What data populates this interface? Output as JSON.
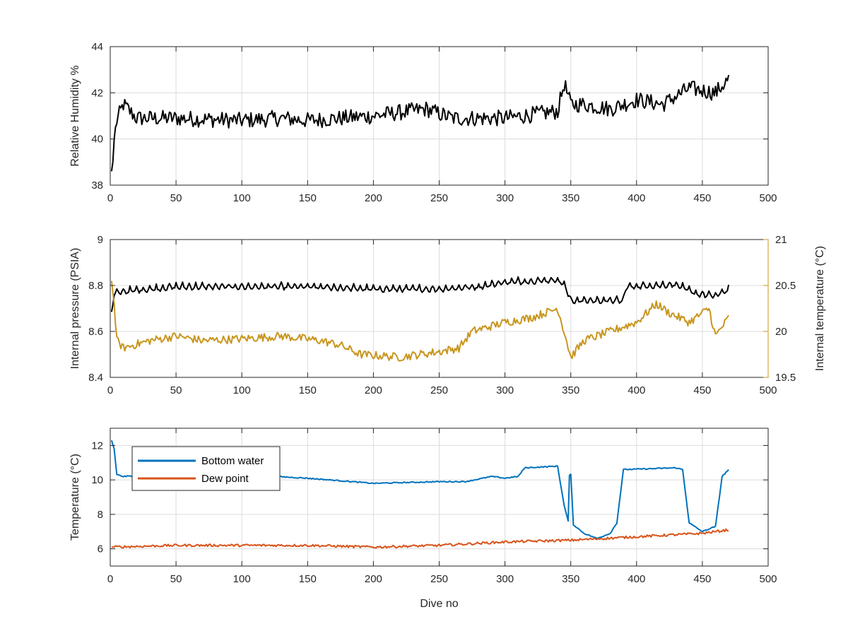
{
  "chart_data": [
    {
      "type": "line",
      "ylabel": "Relative Humidity %",
      "xlim": [
        0,
        500
      ],
      "ylim": [
        38,
        44
      ],
      "xticks": [
        0,
        50,
        100,
        150,
        200,
        250,
        300,
        350,
        400,
        450,
        500
      ],
      "yticks": [
        38,
        40,
        42,
        44
      ],
      "grid": true,
      "series": [
        {
          "color": "#000000",
          "noise": 0.35,
          "points": [
            [
              1,
              38.6
            ],
            [
              2,
              39.0
            ],
            [
              3,
              40.0
            ],
            [
              5,
              40.8
            ],
            [
              10,
              41.5
            ],
            [
              20,
              40.9
            ],
            [
              50,
              40.9
            ],
            [
              100,
              40.8
            ],
            [
              130,
              40.9
            ],
            [
              150,
              40.8
            ],
            [
              200,
              41.0
            ],
            [
              240,
              41.3
            ],
            [
              260,
              40.9
            ],
            [
              300,
              40.9
            ],
            [
              340,
              41.2
            ],
            [
              345,
              42.4
            ],
            [
              350,
              41.5
            ],
            [
              360,
              41.5
            ],
            [
              380,
              41.3
            ],
            [
              400,
              41.7
            ],
            [
              420,
              41.5
            ],
            [
              440,
              42.2
            ],
            [
              460,
              42.0
            ],
            [
              470,
              42.6
            ]
          ]
        }
      ]
    },
    {
      "type": "line",
      "ylabel": "Internal pressure (PSIA)",
      "y2label": "Internal temperature (°C)",
      "xlim": [
        0,
        500
      ],
      "ylim": [
        8.4,
        9.0
      ],
      "y2lim": [
        19.5,
        21.0
      ],
      "xticks": [
        0,
        50,
        100,
        150,
        200,
        250,
        300,
        350,
        400,
        450,
        500
      ],
      "yticks": [
        8.4,
        8.6,
        8.8,
        9.0
      ],
      "ytick_labels": [
        "8.4",
        "8.6",
        "8.8",
        "9"
      ],
      "y2ticks": [
        19.5,
        20.0,
        20.5,
        21.0
      ],
      "y2tick_labels": [
        "19.5",
        "20",
        "20.5",
        "21"
      ],
      "grid": true,
      "series": [
        {
          "axis": "left",
          "color": "#000000",
          "noise": 0.006,
          "sawtooth": 0.025,
          "points": [
            [
              1,
              8.7
            ],
            [
              3,
              8.78
            ],
            [
              10,
              8.79
            ],
            [
              50,
              8.81
            ],
            [
              100,
              8.81
            ],
            [
              150,
              8.81
            ],
            [
              200,
              8.8
            ],
            [
              250,
              8.8
            ],
            [
              280,
              8.81
            ],
            [
              300,
              8.83
            ],
            [
              340,
              8.84
            ],
            [
              345,
              8.82
            ],
            [
              350,
              8.75
            ],
            [
              390,
              8.75
            ],
            [
              392,
              8.81
            ],
            [
              430,
              8.82
            ],
            [
              445,
              8.78
            ],
            [
              460,
              8.77
            ],
            [
              470,
              8.8
            ]
          ]
        },
        {
          "axis": "right",
          "color": "#C8961E",
          "noise": 0.045,
          "points": [
            [
              1,
              20.55
            ],
            [
              3,
              20.3
            ],
            [
              5,
              19.9
            ],
            [
              10,
              19.82
            ],
            [
              30,
              19.9
            ],
            [
              50,
              19.95
            ],
            [
              70,
              19.9
            ],
            [
              100,
              19.92
            ],
            [
              130,
              19.95
            ],
            [
              160,
              19.9
            ],
            [
              175,
              19.85
            ],
            [
              190,
              19.75
            ],
            [
              220,
              19.72
            ],
            [
              250,
              19.78
            ],
            [
              265,
              19.82
            ],
            [
              275,
              20.0
            ],
            [
              300,
              20.1
            ],
            [
              320,
              20.15
            ],
            [
              340,
              20.25
            ],
            [
              345,
              20.0
            ],
            [
              350,
              19.72
            ],
            [
              360,
              19.9
            ],
            [
              380,
              20.0
            ],
            [
              400,
              20.1
            ],
            [
              415,
              20.3
            ],
            [
              425,
              20.2
            ],
            [
              440,
              20.1
            ],
            [
              455,
              20.25
            ],
            [
              460,
              19.95
            ],
            [
              470,
              20.15
            ]
          ]
        }
      ]
    },
    {
      "type": "line",
      "xlabel": "Dive no",
      "ylabel": "Temperature (°C)",
      "xlim": [
        0,
        500
      ],
      "ylim": [
        5,
        13
      ],
      "xticks": [
        0,
        50,
        100,
        150,
        200,
        250,
        300,
        350,
        400,
        450,
        500
      ],
      "yticks": [
        6,
        8,
        10,
        12
      ],
      "grid": true,
      "legend": "top-left",
      "series": [
        {
          "name": "Bottom water",
          "color": "#0072BD",
          "noise": 0.03,
          "points": [
            [
              1,
              12.3
            ],
            [
              3,
              11.8
            ],
            [
              5,
              10.3
            ],
            [
              10,
              10.2
            ],
            [
              50,
              10.4
            ],
            [
              100,
              10.3
            ],
            [
              150,
              10.1
            ],
            [
              200,
              9.8
            ],
            [
              250,
              9.9
            ],
            [
              270,
              9.9
            ],
            [
              290,
              10.2
            ],
            [
              300,
              10.1
            ],
            [
              310,
              10.2
            ],
            [
              315,
              10.7
            ],
            [
              340,
              10.8
            ],
            [
              345,
              8.5
            ],
            [
              348,
              7.6
            ],
            [
              349,
              10.3
            ],
            [
              350,
              10.3
            ],
            [
              352,
              7.4
            ],
            [
              360,
              6.9
            ],
            [
              370,
              6.6
            ],
            [
              380,
              6.9
            ],
            [
              385,
              7.5
            ],
            [
              390,
              10.6
            ],
            [
              430,
              10.7
            ],
            [
              435,
              10.6
            ],
            [
              440,
              7.5
            ],
            [
              450,
              7.0
            ],
            [
              460,
              7.3
            ],
            [
              465,
              10.2
            ],
            [
              470,
              10.6
            ]
          ]
        },
        {
          "name": "Dew point",
          "color": "#D95319",
          "noise": 0.07,
          "points": [
            [
              1,
              6.1
            ],
            [
              50,
              6.2
            ],
            [
              100,
              6.2
            ],
            [
              150,
              6.2
            ],
            [
              200,
              6.1
            ],
            [
              250,
              6.2
            ],
            [
              300,
              6.4
            ],
            [
              350,
              6.5
            ],
            [
              400,
              6.7
            ],
            [
              450,
              6.9
            ],
            [
              470,
              7.1
            ]
          ]
        }
      ]
    }
  ]
}
